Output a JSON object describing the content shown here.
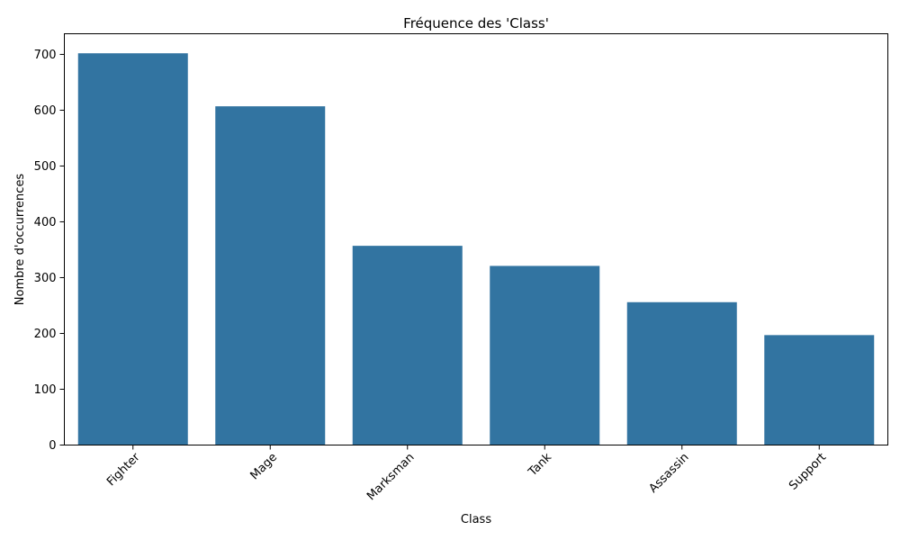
{
  "chart_data": {
    "type": "bar",
    "title": "Fréquence des 'Class'",
    "xlabel": "Class",
    "ylabel": "Nombre d'occurrences",
    "categories": [
      "Fighter",
      "Mage",
      "Marksman",
      "Tank",
      "Assassin",
      "Support"
    ],
    "values": [
      702,
      607,
      357,
      321,
      256,
      197
    ],
    "ylim": [
      0,
      737
    ],
    "yticks": [
      0,
      100,
      200,
      300,
      400,
      500,
      600,
      700
    ],
    "grid": false,
    "bar_color": "#3274a1",
    "x_tick_rotation": 45
  }
}
